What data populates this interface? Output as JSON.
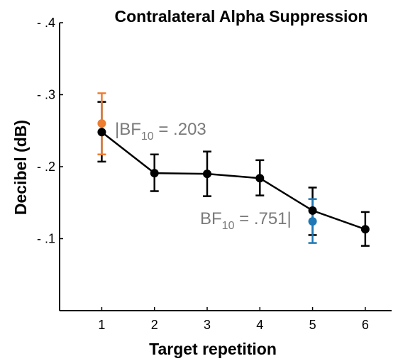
{
  "chart_data": {
    "type": "line",
    "title": "Contralateral Alpha Suppression",
    "xlabel": "Target repetition",
    "ylabel": "Decibel (dB)",
    "categories": [
      "1",
      "2",
      "3",
      "4",
      "5",
      "6"
    ],
    "x": [
      1,
      2,
      3,
      4,
      5,
      6
    ],
    "xlim": [
      0.2,
      6.5
    ],
    "ylim": [
      0,
      0.4
    ],
    "yticks": [
      0.1,
      0.2,
      0.3,
      0.4
    ],
    "ytick_labels": [
      "- .1",
      "- .2",
      "- .3",
      "- .4"
    ],
    "grid": false,
    "series": [
      {
        "color": "#000000",
        "values": [
          -0.248,
          -0.191,
          -0.19,
          -0.184,
          -0.139,
          -0.113
        ],
        "err_low": [
          -0.207,
          -0.166,
          -0.159,
          -0.16,
          -0.105,
          -0.09
        ],
        "err_high": [
          -0.29,
          -0.217,
          -0.221,
          -0.209,
          -0.171,
          -0.137
        ]
      }
    ],
    "highlight_points": [
      {
        "x": 1,
        "value": -0.26,
        "err_low": -0.217,
        "err_high": -0.302,
        "color": "#ed7d31"
      },
      {
        "x": 5,
        "value": -0.124,
        "err_low": -0.094,
        "err_high": -0.155,
        "color": "#1f77b4"
      }
    ],
    "annotations": [
      {
        "text": "|BF",
        "sub": "10",
        "rest": " = .203"
      },
      {
        "text": "BF",
        "sub": "10",
        "rest": " = .751|"
      }
    ]
  }
}
